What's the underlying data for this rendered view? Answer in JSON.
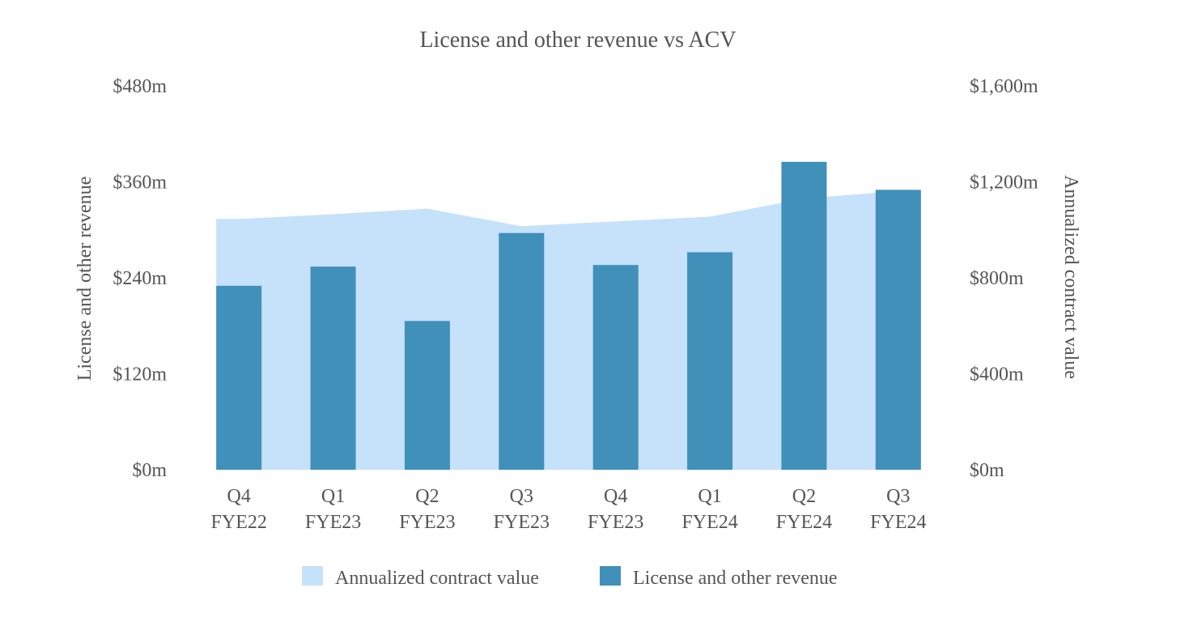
{
  "chart_data": {
    "type": "bar",
    "title": "License and other revenue vs ACV",
    "categories": [
      [
        "Q4",
        "FYE22"
      ],
      [
        "Q1",
        "FYE23"
      ],
      [
        "Q2",
        "FYE23"
      ],
      [
        "Q3",
        "FYE23"
      ],
      [
        "Q4",
        "FYE23"
      ],
      [
        "Q1",
        "FYE24"
      ],
      [
        "Q2",
        "FYE24"
      ],
      [
        "Q3",
        "FYE24"
      ]
    ],
    "series": [
      {
        "name": "Annualized contract value",
        "type": "area",
        "axis": "right",
        "color": "#c6e1fa",
        "values": [
          1045,
          1065,
          1088,
          1015,
          1035,
          1055,
          1130,
          1162
        ]
      },
      {
        "name": "License and other revenue",
        "type": "bar",
        "axis": "left",
        "color": "#4090ba",
        "values": [
          230,
          254,
          186,
          296,
          256,
          272,
          385,
          350
        ]
      }
    ],
    "y_left": {
      "label": "License and other revenue",
      "ylim": [
        0,
        480
      ],
      "ticks": [
        0,
        120,
        240,
        360,
        480
      ],
      "tick_labels": [
        "$0m",
        "$120m",
        "$240m",
        "$360m",
        "$480m"
      ]
    },
    "y_right": {
      "label": "Annualized contract value",
      "ylim": [
        0,
        1600
      ],
      "ticks": [
        0,
        400,
        800,
        1200,
        1600
      ],
      "tick_labels": [
        "$0m",
        "$400m",
        "$800m",
        "$1,200m",
        "$1,600m"
      ]
    },
    "grid": false,
    "legend_position": "bottom-center"
  }
}
